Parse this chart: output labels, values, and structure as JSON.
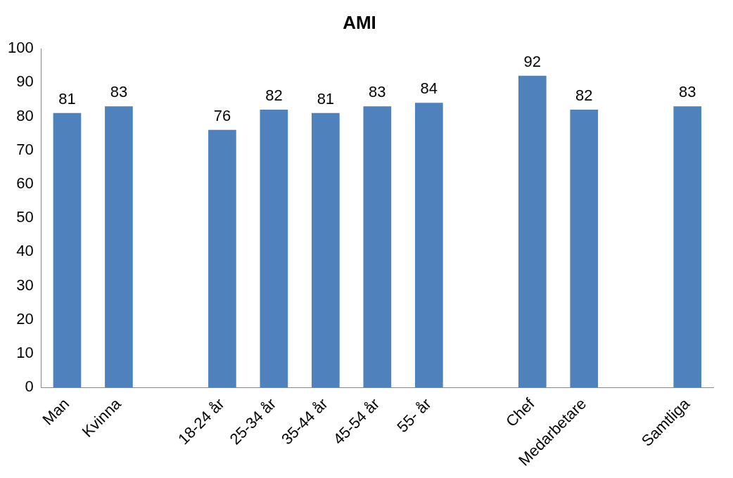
{
  "chart_data": {
    "type": "bar",
    "title": "AMI",
    "categories": [
      "Man",
      "Kvinna",
      null,
      "18-24 år",
      "25-34 år",
      "35-44 år",
      "45-54 år",
      "55- år",
      null,
      "Chef",
      "Medarbetare",
      null,
      "Samtliga"
    ],
    "values": [
      81,
      83,
      null,
      76,
      82,
      81,
      83,
      84,
      null,
      92,
      82,
      null,
      83
    ],
    "color": "#4f81bd",
    "ylim": [
      0,
      100
    ],
    "yticks": [
      0,
      10,
      20,
      30,
      40,
      50,
      60,
      70,
      80,
      90,
      100
    ],
    "grid": false,
    "legend": false,
    "data_labels": true
  }
}
